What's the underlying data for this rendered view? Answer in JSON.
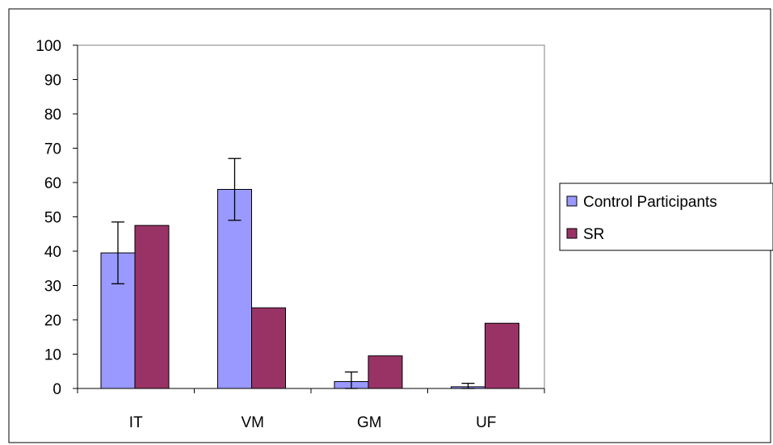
{
  "chart_data": {
    "type": "bar",
    "categories": [
      "IT",
      "VM",
      "GM",
      "UF"
    ],
    "series": [
      {
        "name": "Control Participants",
        "color": "#9999ff",
        "values": [
          39.5,
          58,
          2,
          0.5
        ],
        "error": [
          9,
          9,
          2.8,
          1
        ]
      },
      {
        "name": "SR",
        "color": "#993366",
        "values": [
          47.5,
          23.5,
          9.5,
          19
        ]
      }
    ],
    "title": "",
    "xlabel": "",
    "ylabel": "",
    "ylim": [
      0,
      100
    ],
    "yticks": [
      0,
      10,
      20,
      30,
      40,
      50,
      60,
      70,
      80,
      90,
      100
    ],
    "grid": false,
    "legend": "right"
  }
}
